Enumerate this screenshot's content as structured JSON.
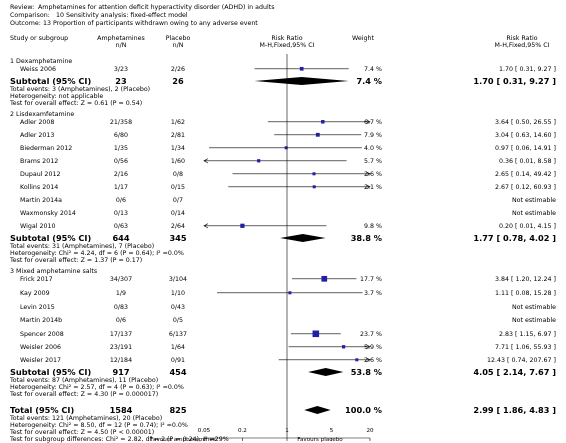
{
  "header": {
    "review_prefix": "Review:",
    "review": "Amphetamines for attention deficit hyperactivity disorder (ADHD) in adults",
    "comparison_prefix": "Comparison:",
    "comparison": "10 Sensitivity analysis: fixed-effect model",
    "outcome_prefix": "Outcome:",
    "outcome": "13 Proportion of participants withdrawn owing to any adverse event"
  },
  "columns": {
    "study": "Study or subgroup",
    "exp": "Amphetamines",
    "exp_sub": "n/N",
    "ctrl": "Placebo",
    "ctrl_sub": "n/N",
    "rr": "Risk Ratio",
    "rr_sub": "M-H,Fixed,95% CI",
    "weight": "Weight",
    "rr2": "Risk Ratio",
    "rr2_sub": "M-H,Fixed,95% CI"
  },
  "chart_data": {
    "type": "forest",
    "scale": "log",
    "xlim": [
      0.05,
      20
    ],
    "ticks": [
      "0.05",
      "0.2",
      "1",
      "5",
      "20"
    ],
    "xlabel_left": "Favours amphetamines",
    "xlabel_right": "Favours placebo",
    "groups": [
      {
        "title": "1 Dexamphetamine",
        "studies": [
          {
            "name": "Weiss 2006",
            "exp": "3/23",
            "ctrl": "2/26",
            "weight": "7.4 %",
            "ci_text": "1.70 [ 0.31, 9.27 ]",
            "rr": 1.7,
            "lo": 0.31,
            "hi": 9.27,
            "w": 7.4
          }
        ],
        "subtotal": {
          "label": "Subtotal (95% CI)",
          "exp": "23",
          "ctrl": "26",
          "weight": "7.4 %",
          "ci_text": "1.70 [ 0.31, 9.27 ]",
          "rr": 1.7,
          "lo": 0.31,
          "hi": 9.27
        },
        "notes": [
          "Total events: 3 (Amphetamines), 2 (Placebo)",
          "Heterogeneity: not applicable",
          "Test for overall effect: Z = 0.61 (P = 0.54)"
        ]
      },
      {
        "title": "2 Lisdexamfetamine",
        "studies": [
          {
            "name": "Adler 2008",
            "exp": "21/358",
            "ctrl": "1/62",
            "weight": "6.7 %",
            "ci_text": "3.64 [ 0.50, 26.55 ]",
            "rr": 3.64,
            "lo": 0.5,
            "hi": 26.55,
            "w": 6.7
          },
          {
            "name": "Adler 2013",
            "exp": "6/80",
            "ctrl": "2/81",
            "weight": "7.9 %",
            "ci_text": "3.04 [ 0.63, 14.60 ]",
            "rr": 3.04,
            "lo": 0.63,
            "hi": 14.6,
            "w": 7.9
          },
          {
            "name": "Biederman 2012",
            "exp": "1/35",
            "ctrl": "1/34",
            "weight": "4.0 %",
            "ci_text": "0.97 [ 0.06, 14.91 ]",
            "rr": 0.97,
            "lo": 0.06,
            "hi": 14.91,
            "w": 4.0
          },
          {
            "name": "Brams 2012",
            "exp": "0/56",
            "ctrl": "1/60",
            "weight": "5.7 %",
            "ci_text": "0.36 [ 0.01, 8.58 ]",
            "rr": 0.36,
            "lo": 0.01,
            "hi": 8.58,
            "w": 5.7
          },
          {
            "name": "Dupaul 2012",
            "exp": "2/16",
            "ctrl": "0/8",
            "weight": "2.6 %",
            "ci_text": "2.65 [ 0.14, 49.42 ]",
            "rr": 2.65,
            "lo": 0.14,
            "hi": 49.42,
            "w": 2.6
          },
          {
            "name": "Kollins 2014",
            "exp": "1/17",
            "ctrl": "0/15",
            "weight": "2.1 %",
            "ci_text": "2.67 [ 0.12, 60.93 ]",
            "rr": 2.67,
            "lo": 0.12,
            "hi": 60.93,
            "w": 2.1
          },
          {
            "name": "Martin 2014a",
            "exp": "0/6",
            "ctrl": "0/7",
            "weight": "",
            "ci_text": "Not estimable",
            "rr": null,
            "lo": null,
            "hi": null,
            "w": 0
          },
          {
            "name": "Waxmonsky 2014",
            "exp": "0/13",
            "ctrl": "0/14",
            "weight": "",
            "ci_text": "Not estimable",
            "rr": null,
            "lo": null,
            "hi": null,
            "w": 0
          },
          {
            "name": "Wigal 2010",
            "exp": "0/63",
            "ctrl": "2/64",
            "weight": "9.8 %",
            "ci_text": "0.20 [ 0.01, 4.15 ]",
            "rr": 0.2,
            "lo": 0.01,
            "hi": 4.15,
            "w": 9.8
          }
        ],
        "subtotal": {
          "label": "Subtotal (95% CI)",
          "exp": "644",
          "ctrl": "345",
          "weight": "38.8 %",
          "ci_text": "1.77 [ 0.78, 4.02 ]",
          "rr": 1.77,
          "lo": 0.78,
          "hi": 4.02
        },
        "notes": [
          "Total events: 31 (Amphetamines), 7 (Placebo)",
          "Heterogeneity: Chi² = 4.24, df = 6 (P = 0.64); I² =0.0%",
          "Test for overall effect: Z = 1.37 (P = 0.17)"
        ]
      },
      {
        "title": "3 Mixed amphetamine salts",
        "studies": [
          {
            "name": "Frick 2017",
            "exp": "34/307",
            "ctrl": "3/104",
            "weight": "17.7 %",
            "ci_text": "3.84 [ 1.20, 12.24 ]",
            "rr": 3.84,
            "lo": 1.2,
            "hi": 12.24,
            "w": 17.7
          },
          {
            "name": "Kay 2009",
            "exp": "1/9",
            "ctrl": "1/10",
            "weight": "3.7 %",
            "ci_text": "1.11 [ 0.08, 15.28 ]",
            "rr": 1.11,
            "lo": 0.08,
            "hi": 15.28,
            "w": 3.7
          },
          {
            "name": "Levin 2015",
            "exp": "0/83",
            "ctrl": "0/43",
            "weight": "",
            "ci_text": "Not estimable",
            "rr": null,
            "lo": null,
            "hi": null,
            "w": 0
          },
          {
            "name": "Martin 2014b",
            "exp": "0/6",
            "ctrl": "0/5",
            "weight": "",
            "ci_text": "Not estimable",
            "rr": null,
            "lo": null,
            "hi": null,
            "w": 0
          },
          {
            "name": "Spencer 2008",
            "exp": "17/137",
            "ctrl": "6/137",
            "weight": "23.7 %",
            "ci_text": "2.83 [ 1.15, 6.97 ]",
            "rr": 2.83,
            "lo": 1.15,
            "hi": 6.97,
            "w": 23.7
          },
          {
            "name": "Weisler 2006",
            "exp": "23/191",
            "ctrl": "1/64",
            "weight": "5.9 %",
            "ci_text": "7.71 [ 1.06, 55.93 ]",
            "rr": 7.71,
            "lo": 1.06,
            "hi": 55.93,
            "w": 5.9
          },
          {
            "name": "Weisler 2017",
            "exp": "12/184",
            "ctrl": "0/91",
            "weight": "2.6 %",
            "ci_text": "12.43 [ 0.74, 207.67 ]",
            "rr": 12.43,
            "lo": 0.74,
            "hi": 207.67,
            "w": 2.6
          }
        ],
        "subtotal": {
          "label": "Subtotal (95% CI)",
          "exp": "917",
          "ctrl": "454",
          "weight": "53.8 %",
          "ci_text": "4.05 [ 2.14, 7.67 ]",
          "rr": 4.05,
          "lo": 2.14,
          "hi": 7.67
        },
        "notes": [
          "Total events: 87 (Amphetamines), 11 (Placebo)",
          "Heterogeneity: Chi² = 2.57, df = 4 (P = 0.63); I² =0.0%",
          "Test for overall effect: Z = 4.30 (P = 0.000017)"
        ]
      }
    ],
    "total": {
      "label": "Total (95% CI)",
      "exp": "1584",
      "ctrl": "825",
      "weight": "100.0 %",
      "ci_text": "2.99 [ 1.86, 4.83 ]",
      "rr": 2.99,
      "lo": 1.86,
      "hi": 4.83
    },
    "total_notes": [
      "Total events: 121 (Amphetamines), 20 (Placebo)",
      "Heterogeneity: Chi² = 8.50, df = 12 (P = 0.74); I² =0.0%",
      "Test for overall effect: Z = 4.50 (P < 0.00001)",
      "Test for subgroup differences: Chi² = 2.82, df = 2 (P = 0.24), I² =29%"
    ]
  },
  "colors": {
    "marker": "#1f1fa8",
    "diamond": "#000000",
    "text": "#000000"
  }
}
